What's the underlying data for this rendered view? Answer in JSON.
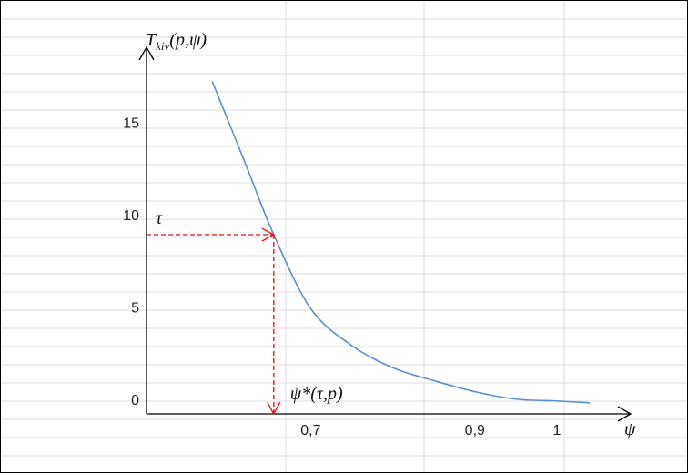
{
  "chart_data": {
    "type": "line",
    "title": "",
    "xlabel": "ψ",
    "ylabel": "T",
    "ylabel_sub": "kiv",
    "ylabel_args": "(p,ψ)",
    "x_ticks": [
      "0,7",
      "0,9",
      "1"
    ],
    "x_tick_values": [
      0.7,
      0.9,
      1.0
    ],
    "y_ticks": [
      "0",
      "5",
      "10",
      "15"
    ],
    "y_tick_values": [
      0,
      5,
      10,
      15
    ],
    "xlim": [
      0.5,
      1.05
    ],
    "ylim": [
      0,
      19.5
    ],
    "grid": true,
    "series": [
      {
        "color": "#5b8fd0",
        "x": [
          0.58,
          0.62,
          0.655,
          0.7,
          0.75,
          0.8,
          0.85,
          0.9,
          0.95,
          1.0,
          1.04
        ],
        "y": [
          18,
          13.6,
          9.7,
          5.7,
          3.7,
          2.5,
          1.8,
          1.2,
          0.8,
          0.7,
          0.6
        ]
      }
    ],
    "annotations": {
      "tau_label": "τ",
      "tau_value": 9.7,
      "psi_star_label": "ψ*(τ,p)",
      "psi_star_value": 0.655,
      "color": "#ff0000"
    }
  }
}
